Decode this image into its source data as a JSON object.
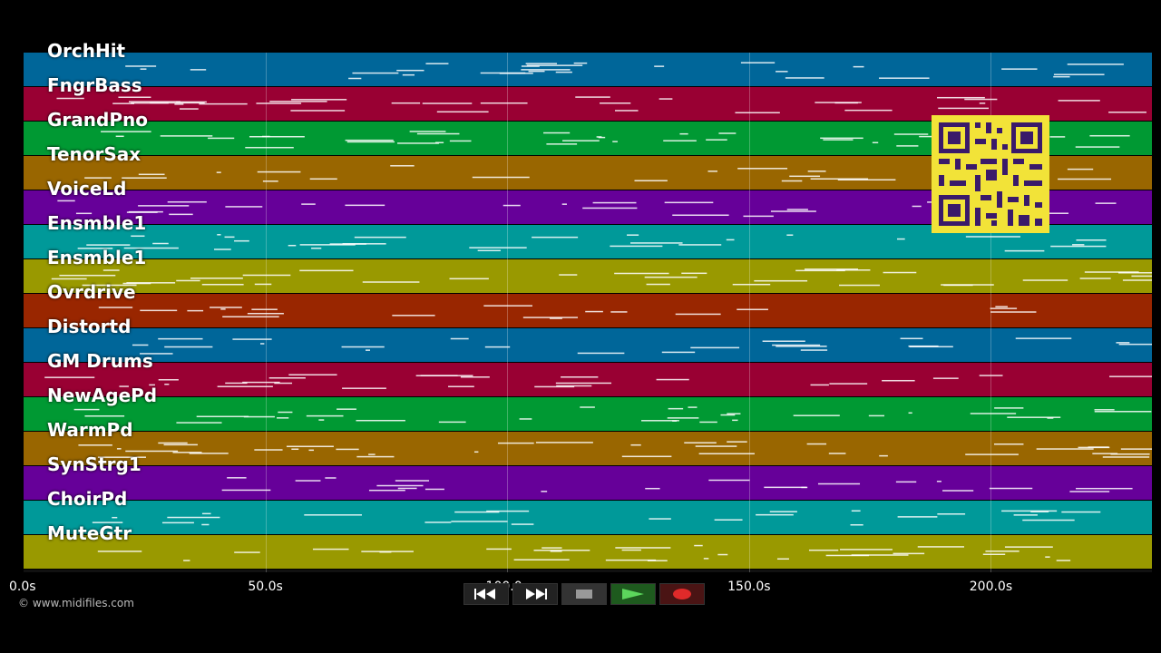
{
  "tracks": [
    {
      "name": "OrchHit",
      "color": "#006699"
    },
    {
      "name": "FngrBass",
      "color": "#990033"
    },
    {
      "name": "GrandPno",
      "color": "#009933"
    },
    {
      "name": "TenorSax",
      "color": "#996600"
    },
    {
      "name": "VoiceLd",
      "color": "#660099"
    },
    {
      "name": "Ensmble1",
      "color": "#009999"
    },
    {
      "name": "Ensmble1",
      "color": "#999900"
    },
    {
      "name": "Ovrdrive",
      "color": "#992600"
    },
    {
      "name": "Distortd",
      "color": "#006699"
    },
    {
      "name": "GM Drums",
      "color": "#990033"
    },
    {
      "name": "NewAgePd",
      "color": "#009933"
    },
    {
      "name": "WarmPd",
      "color": "#996600"
    },
    {
      "name": "SynStrg1",
      "color": "#660099"
    },
    {
      "name": "ChoirPd",
      "color": "#009999"
    },
    {
      "name": "MuteGtr",
      "color": "#999900"
    }
  ],
  "timeline": {
    "ticks": [
      "0.0s",
      "50.0s",
      "100.0s",
      "150.0s",
      "200.0s"
    ],
    "tick_seconds": [
      0,
      50,
      100,
      150,
      200
    ],
    "duration_seconds": 233.3
  },
  "copyright": "© www.midifiles.com",
  "transport": {
    "rewind": "rewind-button",
    "fast_forward": "fast-forward-button",
    "stop": "stop-button",
    "play": "play-button",
    "record": "record-button"
  }
}
